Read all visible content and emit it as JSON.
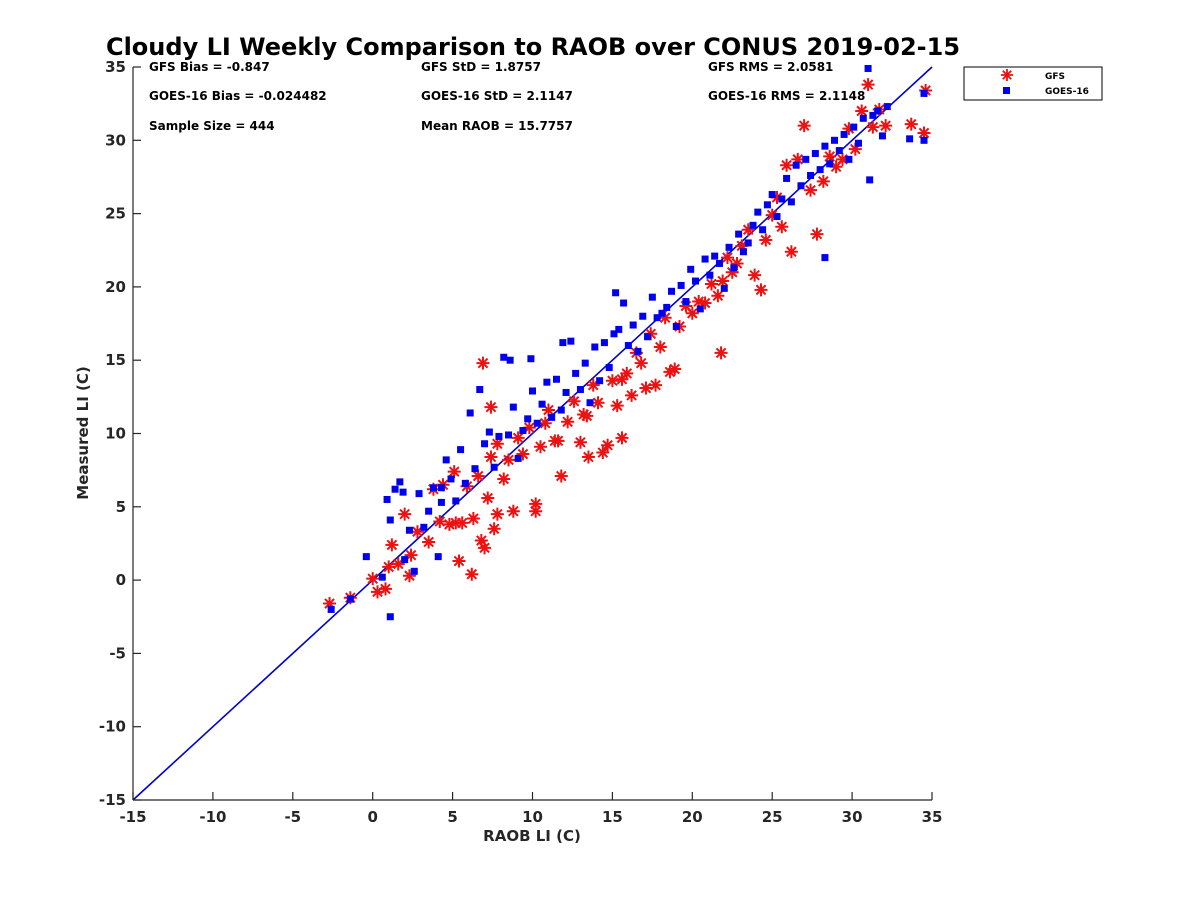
{
  "chart_data": {
    "type": "scatter",
    "title": "Cloudy LI Weekly Comparison to RAOB over CONUS 2019-02-15",
    "xlabel": "RAOB LI (C)",
    "ylabel": "Measured LI (C)",
    "xlim": [
      -15,
      35
    ],
    "ylim": [
      -15,
      35
    ],
    "xticks": [
      "-15",
      "-10",
      "-5",
      "0",
      "5",
      "10",
      "15",
      "20",
      "25",
      "30",
      "35"
    ],
    "yticks": [
      "-15",
      "-10",
      "-5",
      "0",
      "5",
      "10",
      "15",
      "20",
      "25",
      "30",
      "35"
    ],
    "grid": false,
    "legend_position": "outside top-right",
    "annotations": [
      "GFS Bias = -0.847",
      "GFS StD = 1.8757",
      "GFS RMS = 2.0581",
      "GOES-16 Bias = -0.024482",
      "GOES-16 StD = 2.1147",
      "GOES-16 RMS = 2.1148",
      "Sample Size = 444",
      "Mean RAOB = 15.7757"
    ],
    "reference_line": {
      "x": [
        -15,
        35
      ],
      "y": [
        -15,
        35
      ],
      "color": "#0000cc"
    },
    "series": [
      {
        "name": "GFS",
        "marker": "asterisk",
        "color": "#ee1111",
        "x": [
          -2.7,
          -1.4,
          0.0,
          0.3,
          0.8,
          1.2,
          1.0,
          1.6,
          2.0,
          2.3,
          2.4,
          2.8,
          3.5,
          3.8,
          4.2,
          4.4,
          4.8,
          5.1,
          5.4,
          5.6,
          5.9,
          6.2,
          6.3,
          6.6,
          6.8,
          7.0,
          7.2,
          7.4,
          7.6,
          7.8,
          7.4,
          8.2,
          8.5,
          8.8,
          9.1,
          9.4,
          9.8,
          10.2,
          10.5,
          10.8,
          11.0,
          11.4,
          11.8,
          12.2,
          12.6,
          13.0,
          13.2,
          13.5,
          13.8,
          14.1,
          14.4,
          14.7,
          15.0,
          15.3,
          15.6,
          15.9,
          16.2,
          16.5,
          16.8,
          17.1,
          17.4,
          17.7,
          18.0,
          18.3,
          18.6,
          18.9,
          19.2,
          19.6,
          20.0,
          20.4,
          20.8,
          21.2,
          21.6,
          21.9,
          22.2,
          22.5,
          22.8,
          23.1,
          23.5,
          23.9,
          24.3,
          24.6,
          25.0,
          25.3,
          25.6,
          25.9,
          26.2,
          26.6,
          27.0,
          27.4,
          27.8,
          28.2,
          28.6,
          29.0,
          29.4,
          29.8,
          30.2,
          30.6,
          31.0,
          31.3,
          31.7,
          32.1,
          33.7,
          34.5,
          34.6,
          5.2,
          6.9,
          10.2,
          11.6,
          15.6,
          21.8,
          7.8,
          13.4
        ],
        "y": [
          -1.6,
          -1.2,
          0.1,
          -0.8,
          -0.6,
          2.4,
          0.9,
          1.1,
          4.5,
          0.3,
          1.7,
          3.3,
          2.6,
          6.2,
          4.0,
          6.5,
          3.8,
          7.4,
          1.3,
          3.9,
          6.4,
          0.4,
          4.2,
          7.1,
          2.7,
          2.2,
          5.6,
          8.4,
          3.5,
          9.3,
          11.8,
          6.9,
          8.2,
          4.7,
          9.7,
          8.6,
          10.4,
          4.7,
          9.1,
          10.7,
          11.6,
          9.5,
          7.1,
          10.8,
          12.2,
          9.4,
          11.3,
          8.4,
          13.3,
          12.1,
          8.7,
          9.2,
          13.6,
          11.9,
          9.7,
          14.1,
          12.6,
          15.5,
          14.8,
          13.1,
          16.8,
          13.3,
          15.9,
          17.9,
          14.2,
          14.4,
          17.3,
          18.7,
          18.2,
          19.0,
          18.9,
          20.2,
          19.4,
          20.4,
          22.0,
          21.0,
          21.6,
          22.8,
          23.9,
          20.8,
          19.8,
          23.2,
          24.9,
          26.1,
          24.1,
          28.3,
          22.4,
          28.7,
          31.0,
          26.6,
          23.6,
          27.2,
          28.9,
          28.2,
          28.7,
          30.8,
          29.4,
          32.0,
          33.8,
          30.9,
          32.1,
          31.0,
          31.1,
          30.5,
          33.4,
          3.9,
          14.8,
          5.2,
          9.5,
          13.7,
          15.5,
          4.5,
          11.2
        ]
      },
      {
        "name": "GOES-16",
        "marker": "square",
        "color": "#0000ee",
        "x": [
          -2.6,
          -1.4,
          -0.4,
          0.6,
          0.9,
          1.1,
          1.4,
          1.7,
          2.0,
          2.3,
          2.6,
          2.9,
          3.2,
          3.5,
          3.8,
          4.1,
          4.3,
          4.6,
          4.9,
          5.2,
          5.5,
          5.8,
          6.1,
          6.4,
          6.7,
          7.0,
          7.3,
          7.6,
          7.9,
          8.2,
          8.5,
          8.8,
          9.1,
          9.4,
          9.7,
          10.0,
          10.3,
          10.6,
          10.9,
          11.2,
          11.5,
          11.8,
          12.1,
          12.4,
          12.7,
          13.0,
          13.3,
          13.6,
          13.9,
          14.2,
          14.5,
          14.8,
          15.1,
          15.4,
          15.7,
          16.0,
          16.3,
          16.6,
          16.9,
          17.2,
          17.5,
          17.8,
          18.1,
          18.4,
          18.7,
          19.0,
          19.3,
          19.6,
          19.9,
          20.2,
          20.5,
          20.8,
          21.1,
          21.4,
          21.7,
          22.0,
          22.3,
          22.6,
          22.9,
          23.2,
          23.5,
          23.8,
          24.1,
          24.4,
          24.7,
          25.0,
          25.3,
          25.6,
          25.9,
          26.2,
          26.5,
          26.8,
          27.1,
          27.4,
          27.7,
          28.0,
          28.3,
          28.6,
          28.9,
          29.2,
          29.5,
          29.8,
          30.1,
          30.4,
          30.7,
          31.0,
          31.3,
          31.6,
          31.9,
          32.2,
          33.6,
          34.5,
          34.5,
          1.1,
          1.9,
          4.3,
          8.6,
          9.9,
          11.9,
          15.2,
          28.3,
          31.1
        ],
        "y": [
          -2.0,
          -1.3,
          1.6,
          0.2,
          5.5,
          4.1,
          6.2,
          6.7,
          1.4,
          3.4,
          0.6,
          5.9,
          3.6,
          4.7,
          6.3,
          1.6,
          5.3,
          8.2,
          6.9,
          5.4,
          8.9,
          6.6,
          11.4,
          7.6,
          13.0,
          9.3,
          10.1,
          7.7,
          9.8,
          15.2,
          9.9,
          11.8,
          8.3,
          10.2,
          11.0,
          12.9,
          10.7,
          12.0,
          13.5,
          11.1,
          13.7,
          11.6,
          12.8,
          16.3,
          14.1,
          13.0,
          14.8,
          12.1,
          15.9,
          13.6,
          16.2,
          14.5,
          16.8,
          17.1,
          18.9,
          16.0,
          17.4,
          15.6,
          18.0,
          16.6,
          19.3,
          17.9,
          18.2,
          18.6,
          19.7,
          17.3,
          20.1,
          19.0,
          21.2,
          20.4,
          18.5,
          21.9,
          20.8,
          22.1,
          21.6,
          19.9,
          22.7,
          21.3,
          23.6,
          22.4,
          23.0,
          24.2,
          25.1,
          23.9,
          25.6,
          26.3,
          24.8,
          26.0,
          27.4,
          25.8,
          28.3,
          26.9,
          28.7,
          27.6,
          29.1,
          28.0,
          29.6,
          28.4,
          30.0,
          29.3,
          30.4,
          28.7,
          30.9,
          29.8,
          31.5,
          34.9,
          31.7,
          32.0,
          30.3,
          32.3,
          30.1,
          30.0,
          33.2,
          -2.5,
          6.0,
          6.3,
          15.0,
          15.1,
          16.2,
          19.6,
          22.0,
          27.3
        ]
      }
    ]
  }
}
